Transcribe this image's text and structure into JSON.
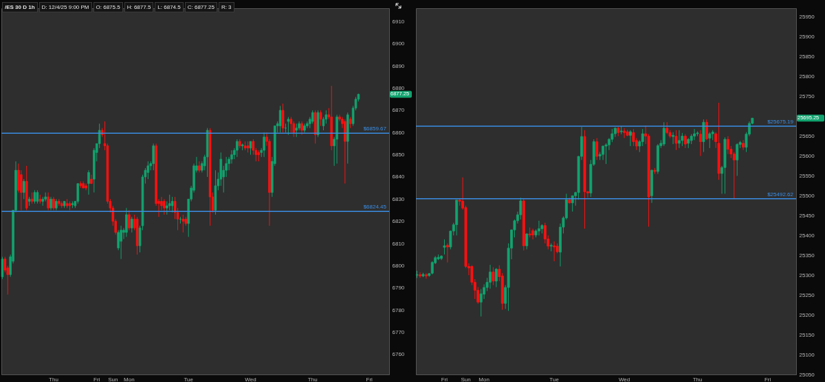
{
  "chart_data": [
    {
      "type": "candlestick",
      "title": "/ES 30 D 1h",
      "annotations": [
        "D: 12/4/25 9:00 PM",
        "O: 6875.5",
        "H: 6877.5",
        "L: 6874.5",
        "C: 6877.25",
        "R: 3",
        "6877.25"
      ],
      "categories": [
        null,
        null,
        null,
        null,
        null,
        null,
        null,
        null,
        null,
        null,
        null,
        null,
        null,
        null,
        null,
        null,
        null,
        null,
        null,
        "Thu",
        null,
        null,
        null,
        null,
        null,
        null,
        null,
        null,
        null,
        null,
        null,
        null,
        null,
        null,
        null,
        "Fri",
        null,
        null,
        null,
        null,
        null,
        "Sun",
        null,
        null,
        null,
        null,
        null,
        "Mon",
        null,
        null,
        null,
        null,
        null,
        null,
        null,
        null,
        null,
        null,
        null,
        null,
        null,
        null,
        null,
        null,
        null,
        null,
        null,
        null,
        null,
        "Tue",
        null,
        null,
        null,
        null,
        null,
        null,
        null,
        null,
        null,
        null,
        null,
        null,
        null,
        null,
        null,
        null,
        null,
        null,
        null,
        null,
        null,
        null,
        "Wed",
        null,
        null,
        null,
        null,
        null,
        null,
        null,
        null,
        null,
        null,
        null,
        null,
        null,
        null,
        null,
        null,
        null,
        null,
        null,
        null,
        null,
        null,
        "Thu",
        null,
        null,
        null,
        null,
        null,
        null,
        null,
        null,
        null,
        null,
        null,
        null,
        null,
        null,
        null,
        null,
        null,
        null,
        null,
        null,
        "Fri",
        null,
        null,
        null,
        null,
        null,
        null,
        null
      ],
      "ohlc": [
        [
          6795,
          6804,
          6794,
          6803
        ],
        [
          6803,
          6804,
          6797,
          6798
        ],
        [
          6799,
          6800,
          6787,
          6796
        ],
        [
          6796,
          6805,
          6795,
          6804
        ],
        [
          6802,
          6825,
          6801,
          6825
        ],
        [
          6825,
          6847,
          6824,
          6843
        ],
        [
          6843,
          6846,
          6833,
          6834
        ],
        [
          6841,
          6843,
          6825,
          6833
        ],
        [
          6833,
          6839,
          6830,
          6838
        ],
        [
          6838,
          6845,
          6825,
          6826
        ],
        [
          6829,
          6831,
          6827,
          6830
        ],
        [
          6830,
          6833,
          6828,
          6829
        ],
        [
          6829,
          6834,
          6828,
          6833
        ],
        [
          6829,
          6834,
          6828,
          6833
        ],
        [
          6830,
          6832,
          6828,
          6829
        ],
        [
          6829,
          6831,
          6827,
          6830
        ],
        [
          6830,
          6833,
          6829,
          6831
        ],
        [
          6831,
          6833,
          6825,
          6826
        ],
        [
          6826,
          6831,
          6825,
          6830
        ],
        [
          6830,
          6831,
          6825,
          6826
        ],
        [
          6826,
          6830,
          6825,
          6829
        ],
        [
          6829,
          6830,
          6827,
          6828
        ],
        [
          6828,
          6829,
          6826,
          6827
        ],
        [
          6827,
          6829,
          6826,
          6829
        ],
        [
          6828,
          6830,
          6826,
          6827
        ],
        [
          6828,
          6829,
          6825,
          6827
        ],
        [
          6827.5,
          6829,
          6826,
          6828
        ],
        [
          6827,
          6829,
          6826,
          6829
        ],
        [
          6829,
          6837,
          6828,
          6837
        ],
        [
          6837,
          6838,
          6835,
          6836
        ],
        [
          6837,
          6838,
          6835,
          6835
        ],
        [
          6836,
          6837,
          6834,
          6835
        ],
        [
          6837,
          6843,
          6832,
          6842
        ],
        [
          6839,
          6841,
          6837,
          6837
        ],
        [
          6839,
          6853,
          6833,
          6852
        ],
        [
          6851,
          6855,
          6847,
          6855
        ],
        [
          6855,
          6864,
          6853,
          6861
        ],
        [
          6861,
          6862,
          6858,
          6859
        ],
        [
          6855,
          6865,
          6852,
          6854
        ],
        [
          6854,
          6855,
          6828,
          6829
        ],
        [
          6829,
          6830,
          6824,
          6826
        ],
        [
          6826,
          6827,
          6818,
          6820
        ],
        [
          6820,
          6821,
          6814,
          6815
        ],
        [
          6808,
          6816,
          6807,
          6815
        ],
        [
          6811,
          6818,
          6803,
          6816
        ],
        [
          6815,
          6817,
          6812,
          6816
        ],
        [
          6815,
          6826,
          6813,
          6823
        ],
        [
          6823,
          6825,
          6816,
          6817
        ],
        [
          6817,
          6822,
          6815,
          6821
        ],
        [
          6821,
          6823,
          6816,
          6817
        ],
        [
          6821,
          6822,
          6805,
          6809
        ],
        [
          6809,
          6818,
          6806,
          6817
        ],
        [
          6818,
          6841,
          6816,
          6840
        ],
        [
          6840,
          6844,
          6837,
          6843
        ],
        [
          6842,
          6847,
          6839,
          6845
        ],
        [
          6845,
          6847,
          6843,
          6846
        ],
        [
          6846,
          6855,
          6843,
          6854
        ],
        [
          6854,
          6855,
          6827,
          6828
        ],
        [
          6829,
          6830,
          6822,
          6828
        ],
        [
          6829,
          6831,
          6825,
          6827
        ],
        [
          6829,
          6830,
          6823,
          6826
        ],
        [
          6826,
          6829,
          6823,
          6827
        ],
        [
          6827,
          6832,
          6825,
          6828
        ],
        [
          6827,
          6831,
          6824,
          6829
        ],
        [
          6829,
          6831,
          6821,
          6824
        ],
        [
          6824,
          6826,
          6816,
          6821
        ],
        [
          6821,
          6822,
          6819,
          6821
        ],
        [
          6821,
          6823,
          6815,
          6820
        ],
        [
          6821,
          6822,
          6818,
          6819
        ],
        [
          6819,
          6830,
          6813,
          6830
        ],
        [
          6830,
          6836,
          6829,
          6835
        ],
        [
          6834,
          6846,
          6833,
          6845
        ],
        [
          6843,
          6849,
          6842,
          6845
        ],
        [
          6845,
          6847,
          6842,
          6843
        ],
        [
          6843,
          6847,
          6842,
          6846
        ],
        [
          6845,
          6850,
          6843,
          6849
        ],
        [
          6849,
          6862,
          6840,
          6861
        ],
        [
          6861,
          6862,
          6818,
          6831
        ],
        [
          6831,
          6833,
          6824,
          6825
        ],
        [
          6825,
          6843,
          6823,
          6836
        ],
        [
          6836,
          6842,
          6834,
          6839
        ],
        [
          6839,
          6851,
          6836,
          6848
        ],
        [
          6840,
          6845,
          6833,
          6843
        ],
        [
          6843,
          6849,
          6840,
          6846
        ],
        [
          6846,
          6849,
          6843,
          6848
        ],
        [
          6848,
          6852,
          6846,
          6850
        ],
        [
          6850,
          6853,
          6848,
          6852
        ],
        [
          6852,
          6857,
          6849,
          6856
        ],
        [
          6856,
          6857,
          6853,
          6854
        ],
        [
          6854,
          6855,
          6852,
          6854.5
        ],
        [
          6854,
          6856,
          6852,
          6853
        ],
        [
          6854,
          6856,
          6851,
          6853
        ],
        [
          6853,
          6856,
          6850,
          6856
        ],
        [
          6856,
          6857,
          6850,
          6852
        ],
        [
          6852,
          6853,
          6847,
          6850
        ],
        [
          6851,
          6852,
          6847,
          6850
        ],
        [
          6851,
          6853,
          6849,
          6852
        ],
        [
          6852,
          6860,
          6849,
          6858
        ],
        [
          6858,
          6860,
          6854,
          6856
        ],
        [
          6856,
          6857,
          6818,
          6833
        ],
        [
          6833,
          6849,
          6831,
          6847
        ],
        [
          6846,
          6863,
          6845,
          6863
        ],
        [
          6863,
          6865,
          6860,
          6864
        ],
        [
          6863,
          6872,
          6860,
          6870
        ],
        [
          6870,
          6873,
          6860,
          6862
        ],
        [
          6862,
          6864,
          6860,
          6862
        ],
        [
          6865,
          6867,
          6859,
          6866
        ],
        [
          6866,
          6867,
          6860,
          6864
        ],
        [
          6864,
          6865,
          6858,
          6860
        ],
        [
          6861,
          6864,
          6858,
          6862
        ],
        [
          6862,
          6865,
          6861,
          6864
        ],
        [
          6864,
          6865,
          6859,
          6861
        ],
        [
          6861,
          6864,
          6860,
          6863
        ],
        [
          6863,
          6865,
          6862,
          6864
        ],
        [
          6864,
          6867,
          6862,
          6866
        ],
        [
          6865,
          6870,
          6864,
          6869
        ],
        [
          6869,
          6870,
          6855,
          6859
        ],
        [
          6859,
          6870,
          6858,
          6869
        ],
        [
          6869,
          6870,
          6863,
          6866
        ],
        [
          6863,
          6867,
          6861,
          6866
        ],
        [
          6866,
          6870,
          6864,
          6868
        ],
        [
          6868,
          6871,
          6866,
          6867
        ],
        [
          6867,
          6881,
          6852,
          6854
        ],
        [
          6854,
          6858,
          6845,
          6857
        ],
        [
          6857,
          6868,
          6846,
          6867
        ],
        [
          6867,
          6868,
          6865,
          6866
        ],
        [
          6866,
          6867,
          6862,
          6864
        ],
        [
          6865,
          6866,
          6837,
          6856
        ],
        [
          6856,
          6869,
          6846,
          6868
        ],
        [
          6866,
          6867,
          6862,
          6864
        ],
        [
          6864,
          6872,
          6863,
          6871
        ],
        [
          6871,
          6876,
          6870,
          6875
        ],
        [
          6875,
          6877.5,
          6874,
          6877.25
        ],
        null,
        null,
        null,
        null,
        null,
        null,
        null,
        null,
        null,
        null,
        null
      ],
      "ylim": [
        6751,
        6916
      ],
      "yticks": [
        6760,
        6770,
        6780,
        6790,
        6800,
        6810,
        6820,
        6830,
        6840,
        6850,
        6860,
        6870,
        6880,
        6890,
        6900,
        6910
      ],
      "ref_lines": [
        {
          "axis": "y",
          "value": 6859.67,
          "label": "$6859.67",
          "color": "#3a8ee6"
        },
        {
          "axis": "y",
          "value": 6824.45,
          "label": "$6824.45",
          "color": "#3a8ee6"
        }
      ]
    },
    {
      "type": "candlestick",
      "annotations": [
        "25695.25"
      ],
      "categories": [
        null,
        null,
        null,
        null,
        null,
        null,
        null,
        null,
        null,
        "Fri",
        null,
        null,
        null,
        null,
        null,
        null,
        "Sun",
        null,
        null,
        null,
        null,
        null,
        "Mon",
        null,
        null,
        null,
        null,
        null,
        null,
        null,
        null,
        null,
        null,
        null,
        null,
        null,
        null,
        null,
        null,
        null,
        null,
        null,
        null,
        null,
        null,
        "Tue",
        null,
        null,
        null,
        null,
        null,
        null,
        null,
        null,
        null,
        null,
        null,
        null,
        null,
        null,
        null,
        null,
        null,
        null,
        null,
        null,
        null,
        null,
        "Wed",
        null,
        null,
        null,
        null,
        null,
        null,
        null,
        null,
        null,
        null,
        null,
        null,
        null,
        null,
        null,
        null,
        null,
        null,
        null,
        null,
        null,
        null,
        null,
        "Thu",
        null,
        null,
        null,
        null,
        null,
        null,
        null,
        null,
        null,
        null,
        null,
        null,
        null,
        null,
        null,
        null,
        null,
        null,
        null,
        null,
        null,
        null,
        "Fri",
        null,
        null,
        null,
        null,
        null,
        null,
        null,
        null,
        null
      ],
      "ohlc": [
        [
          25300,
          25311,
          25293,
          25301
        ],
        [
          25301,
          25307,
          25293,
          25298
        ],
        [
          25298,
          25306,
          25295,
          25302
        ],
        [
          25301,
          25305,
          25291,
          25298
        ],
        [
          25299,
          25305,
          25296,
          25304
        ],
        [
          25305,
          25335,
          25302,
          25332
        ],
        [
          25331,
          25348,
          25328,
          25344
        ],
        [
          25341,
          25352,
          25338,
          25345
        ],
        [
          25342,
          25350,
          25338,
          25348
        ],
        [
          25370,
          25390,
          25352,
          25374
        ],
        [
          25375,
          25380,
          25332,
          25371
        ],
        [
          25371,
          25412,
          25365,
          25411
        ],
        [
          25411,
          25432,
          25400,
          25427
        ],
        [
          25427,
          25489,
          25400,
          25489
        ],
        [
          25489,
          25492,
          25475,
          25486
        ],
        [
          25486,
          25546,
          25465,
          25469
        ],
        [
          25470,
          25475,
          25318,
          25322
        ],
        [
          25322,
          25330,
          25300,
          25318
        ],
        [
          25322,
          25325,
          25275,
          25282
        ],
        [
          25282,
          25290,
          25240,
          25262
        ],
        [
          25262,
          25270,
          25228,
          25232
        ],
        [
          25232,
          25265,
          25196,
          25253
        ],
        [
          25252,
          25277,
          25240,
          25269
        ],
        [
          25269,
          25293,
          25260,
          25282
        ],
        [
          25282,
          25326,
          25266,
          25308
        ],
        [
          25308,
          25320,
          25275,
          25285
        ],
        [
          25285,
          25318,
          25270,
          25315
        ],
        [
          25315,
          25325,
          25285,
          25296
        ],
        [
          25298,
          25305,
          25213,
          25229
        ],
        [
          25229,
          25275,
          25215,
          25269
        ],
        [
          25269,
          25380,
          25210,
          25368
        ],
        [
          25368,
          25415,
          25340,
          25414
        ],
        [
          25414,
          25440,
          25395,
          25437
        ],
        [
          25437,
          25460,
          25430,
          25452
        ],
        [
          25452,
          25495,
          25440,
          25487
        ],
        [
          25487,
          25492,
          25362,
          25374
        ],
        [
          25374,
          25405,
          25365,
          25404
        ],
        [
          25404,
          25420,
          25395,
          25401
        ],
        [
          25412,
          25417,
          25390,
          25401
        ],
        [
          25401,
          25415,
          25395,
          25411
        ],
        [
          25411,
          25437,
          25400,
          25417
        ],
        [
          25417,
          25428,
          25405,
          25425
        ],
        [
          25425,
          25432,
          25380,
          25391
        ],
        [
          25391,
          25400,
          25365,
          25373
        ],
        [
          25373,
          25380,
          25360,
          25375
        ],
        [
          25374,
          25385,
          25335,
          25371
        ],
        [
          25373,
          25380,
          25355,
          25359
        ],
        [
          25358,
          25430,
          25322,
          25421
        ],
        [
          25421,
          25448,
          25405,
          25444
        ],
        [
          25444,
          25505,
          25440,
          25490
        ],
        [
          25490,
          25495,
          25480,
          25482
        ],
        [
          25482,
          25500,
          25460,
          25500
        ],
        [
          25500,
          25510,
          25475,
          25508
        ],
        [
          25508,
          25600,
          25490,
          25599
        ],
        [
          25599,
          25673,
          25590,
          25649
        ],
        [
          25649,
          25665,
          25417,
          25510
        ],
        [
          25510,
          25512,
          25495,
          25507
        ],
        [
          25507,
          25590,
          25497,
          25579
        ],
        [
          25579,
          25642,
          25575,
          25636
        ],
        [
          25636,
          25645,
          25590,
          25599
        ],
        [
          25600,
          25610,
          25590,
          25604
        ],
        [
          25604,
          25626,
          25590,
          25625
        ],
        [
          25625,
          25632,
          25580,
          25628
        ],
        [
          25628,
          25645,
          25615,
          25642
        ],
        [
          25642,
          25668,
          25635,
          25656
        ],
        [
          25656,
          25672,
          25648,
          25670
        ],
        [
          25670,
          25673,
          25650,
          25659
        ],
        [
          25661,
          25675,
          25655,
          25663
        ],
        [
          25663,
          25670,
          25645,
          25659
        ],
        [
          25661,
          25666,
          25650,
          25652
        ],
        [
          25652,
          25665,
          25625,
          25661
        ],
        [
          25659,
          25668,
          25625,
          25636
        ],
        [
          25639,
          25645,
          25615,
          25625
        ],
        [
          25625,
          25640,
          25610,
          25636
        ],
        [
          25636,
          25668,
          25625,
          25656
        ],
        [
          25656,
          25677,
          25630,
          25650
        ],
        [
          25650,
          25655,
          25422,
          25497
        ],
        [
          25500,
          25566,
          25482,
          25564
        ],
        [
          25564,
          25570,
          25555,
          25561
        ],
        [
          25561,
          25630,
          25555,
          25626
        ],
        [
          25626,
          25640,
          25620,
          25632
        ],
        [
          25630,
          25685,
          25625,
          25670
        ],
        [
          25670,
          25685,
          25655,
          25659
        ],
        [
          25659,
          25665,
          25645,
          25650
        ],
        [
          25649,
          25660,
          25630,
          25652
        ],
        [
          25650,
          25665,
          25615,
          25632
        ],
        [
          25632,
          25665,
          25620,
          25639
        ],
        [
          25639,
          25658,
          25625,
          25650
        ],
        [
          25650,
          25655,
          25620,
          25630
        ],
        [
          25632,
          25645,
          25620,
          25642
        ],
        [
          25639,
          25655,
          25630,
          25650
        ],
        [
          25650,
          25668,
          25640,
          25656
        ],
        [
          25656,
          25662,
          25650,
          25658
        ],
        [
          25655,
          25665,
          25600,
          25636
        ],
        [
          25636,
          25692,
          25610,
          25685
        ],
        [
          25685,
          25692,
          25640,
          25643
        ],
        [
          25645,
          25660,
          25620,
          25656
        ],
        [
          25656,
          25665,
          25640,
          25660
        ],
        [
          25656,
          25660,
          25620,
          25636
        ],
        [
          25632,
          25734,
          25540,
          25556
        ],
        [
          25556,
          25575,
          25505,
          25571
        ],
        [
          25571,
          25647,
          25505,
          25642
        ],
        [
          25642,
          25650,
          25605,
          25617
        ],
        [
          25617,
          25625,
          25595,
          25605
        ],
        [
          25605,
          25610,
          25492,
          25590
        ],
        [
          25590,
          25632,
          25550,
          25629
        ],
        [
          25629,
          25638,
          25620,
          25634
        ],
        [
          25632,
          25640,
          25615,
          25622
        ],
        [
          25622,
          25660,
          25610,
          25655
        ],
        [
          25655,
          25687,
          25650,
          25682
        ],
        [
          25682,
          25696,
          25680,
          25695.25
        ],
        null,
        null,
        null,
        null,
        null,
        null,
        null,
        null,
        null,
        null,
        null,
        null,
        null,
        null
      ],
      "ylim": [
        25050,
        25972
      ],
      "yticks": [
        25050,
        25100,
        25150,
        25200,
        25250,
        25300,
        25350,
        25400,
        25450,
        25500,
        25550,
        25600,
        25650,
        25750,
        25800,
        25850,
        25900,
        25950
      ],
      "ref_lines": [
        {
          "axis": "y",
          "value": 25675.19,
          "label": "$25675.19",
          "color": "#3a8ee6"
        },
        {
          "axis": "y",
          "value": 25492.62,
          "label": "$25492.62",
          "color": "#3a8ee6"
        }
      ]
    }
  ]
}
